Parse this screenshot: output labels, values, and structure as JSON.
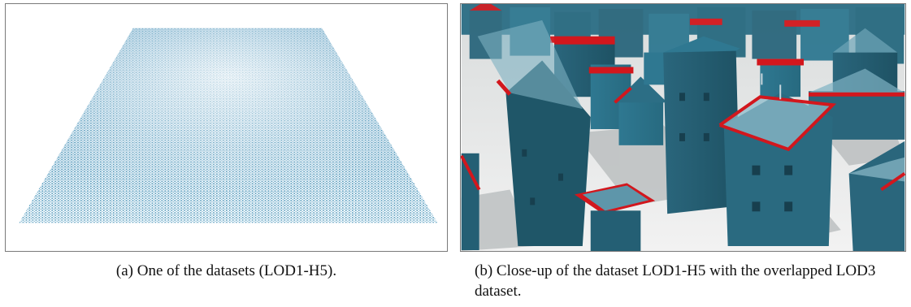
{
  "figure": {
    "subfigures": [
      {
        "id": "a",
        "caption": "(a) One of the datasets (LOD1-H5).",
        "image_description": "rendered-dataset-plane"
      },
      {
        "id": "b",
        "caption": "(b) Close-up of the dataset LOD1-H5 with the overlapped LOD3 dataset.",
        "image_description": "rendered-buildings-closeup"
      }
    ]
  },
  "colors": {
    "building_teal": "#2f6f86",
    "building_dark": "#1f4f63",
    "overlay_glass": "#8fb9c8",
    "roof_red": "#d2171d",
    "ground": "#e8e8e8",
    "point_cloud": "#3c8db4"
  }
}
